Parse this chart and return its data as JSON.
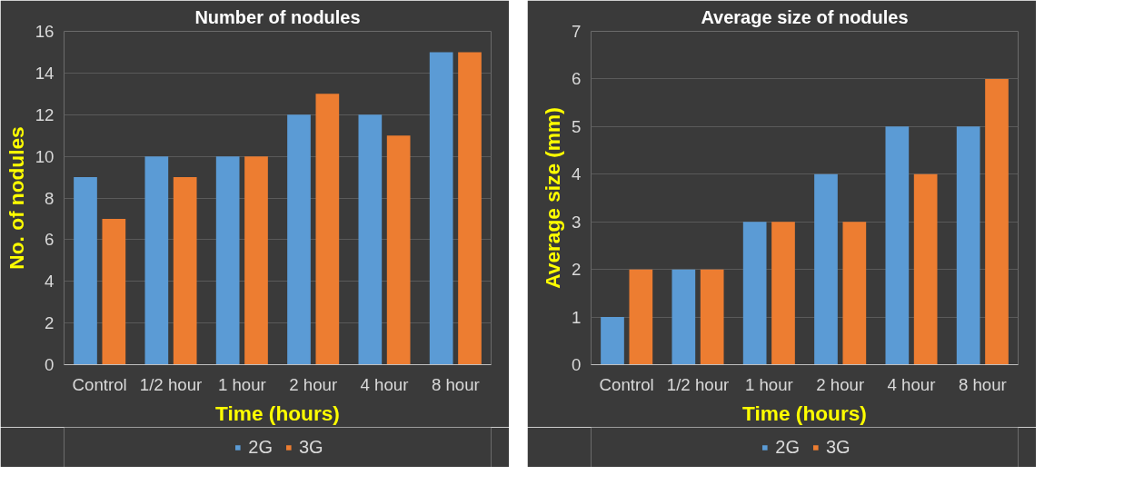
{
  "chart_data": [
    {
      "type": "bar",
      "title": "Number of nodules",
      "xlabel": "Time (hours)",
      "ylabel": "No. of nodules",
      "categories": [
        "Control",
        "1/2 hour",
        "1 hour",
        "2 hour",
        "4 hour",
        "8 hour"
      ],
      "series": [
        {
          "name": "2G",
          "color": "#5b9bd5",
          "values": [
            9,
            10,
            10,
            12,
            12,
            15
          ]
        },
        {
          "name": "3G",
          "color": "#ed7d31",
          "values": [
            7,
            9,
            10,
            13,
            11,
            15
          ]
        }
      ],
      "ylim": [
        0,
        16
      ],
      "yticks": [
        0,
        2,
        4,
        6,
        8,
        10,
        12,
        14,
        16
      ],
      "grid": "y",
      "legend": "bottom"
    },
    {
      "type": "bar",
      "title": "Average size of nodules",
      "xlabel": "Time (hours)",
      "ylabel": "Average size (mm)",
      "categories": [
        "Control",
        "1/2 hour",
        "1 hour",
        "2 hour",
        "4 hour",
        "8 hour"
      ],
      "series": [
        {
          "name": "2G",
          "color": "#5b9bd5",
          "values": [
            1,
            2,
            3,
            4,
            5,
            5
          ]
        },
        {
          "name": "3G",
          "color": "#ed7d31",
          "values": [
            2,
            2,
            3,
            3,
            4,
            6
          ]
        }
      ],
      "ylim": [
        0,
        7
      ],
      "yticks": [
        0,
        1,
        2,
        3,
        4,
        5,
        6,
        7
      ],
      "grid": "y",
      "legend": "bottom"
    }
  ]
}
